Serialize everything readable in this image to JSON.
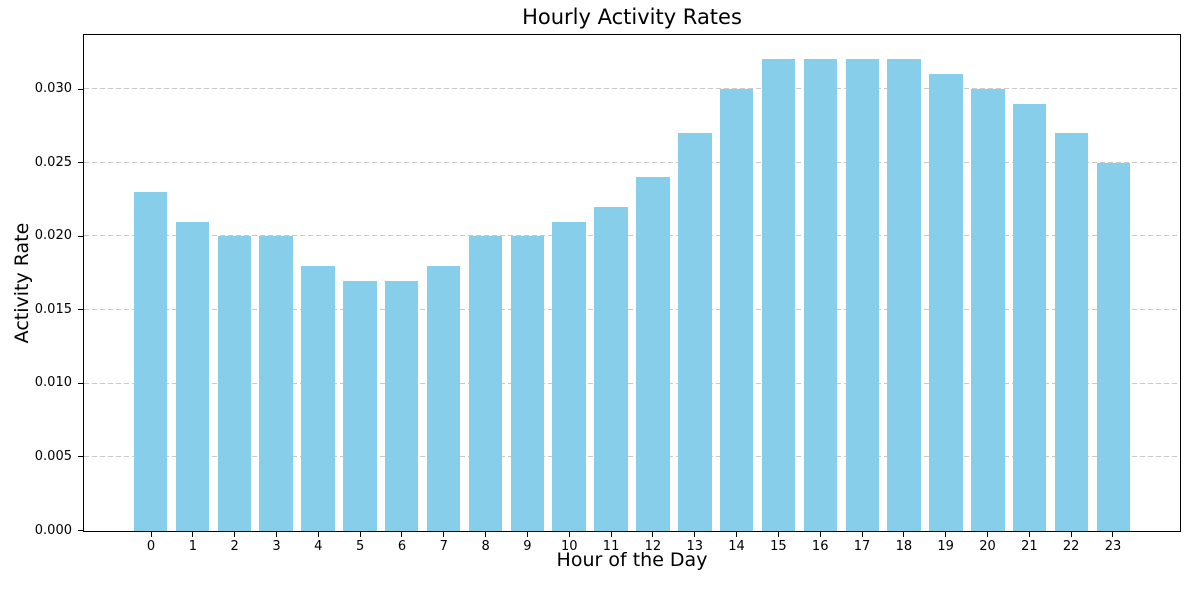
{
  "figure": {
    "title": "Hourly Activity Rates"
  },
  "chart_data": {
    "type": "bar",
    "title": "Hourly Activity Rates",
    "xlabel": "Hour of the Day",
    "ylabel": "Activity Rate",
    "categories": [
      "0",
      "1",
      "2",
      "3",
      "4",
      "5",
      "6",
      "7",
      "8",
      "9",
      "10",
      "11",
      "12",
      "13",
      "14",
      "15",
      "16",
      "17",
      "18",
      "19",
      "20",
      "21",
      "22",
      "23"
    ],
    "values": [
      0.023,
      0.021,
      0.02,
      0.02,
      0.018,
      0.017,
      0.017,
      0.018,
      0.02,
      0.02,
      0.021,
      0.022,
      0.024,
      0.027,
      0.03,
      0.032,
      0.032,
      0.032,
      0.032,
      0.031,
      0.03,
      0.029,
      0.027,
      0.025
    ],
    "ylim": [
      0,
      0.03366
    ],
    "yticks": [
      0,
      0.005,
      0.01,
      0.015,
      0.02,
      0.025,
      0.03
    ],
    "ytick_labels": [
      "0.000",
      "0.005",
      "0.010",
      "0.015",
      "0.020",
      "0.025",
      "0.030"
    ],
    "grid": "horizontal dashed",
    "legend": "none",
    "colors": {
      "bar": "#87CEEB",
      "grid": "#c9c9c9",
      "spine": "#000000",
      "text": "#000000",
      "background": "#ffffff"
    }
  }
}
